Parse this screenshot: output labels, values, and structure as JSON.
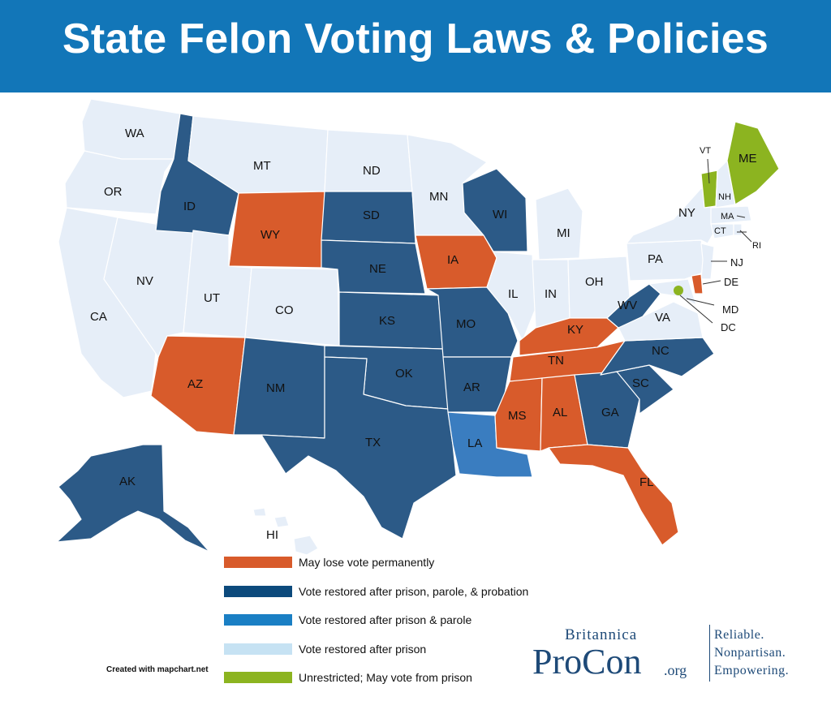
{
  "title": "State Felon Voting Laws & Policies",
  "colors": {
    "banner": "#1276b8",
    "permanent": "#d85b2b",
    "prison_parole_probation": "#2c5a87",
    "prison_parole": "#3a7dc0",
    "prison": "#e6eef8",
    "unrestricted": "#8cb420"
  },
  "legend": [
    {
      "category": "permanent",
      "label": "May lose vote permanently",
      "color": "#d85b2b"
    },
    {
      "category": "prison_parole_probation",
      "label": "Vote restored after prison, parole, & probation",
      "color": "#0c4a7c"
    },
    {
      "category": "prison_parole",
      "label": "Vote restored after prison & parole",
      "color": "#1a7fc4"
    },
    {
      "category": "prison",
      "label": "Vote restored after prison",
      "color": "#c6e2f3"
    },
    {
      "category": "unrestricted",
      "label": "Unrestricted; May vote from prison",
      "color": "#8cb420"
    }
  ],
  "states": {
    "WA": "prison",
    "OR": "prison",
    "CA": "prison",
    "NV": "prison",
    "ID": "prison_parole_probation",
    "MT": "prison",
    "WY": "permanent",
    "UT": "prison",
    "CO": "prison",
    "AZ": "permanent",
    "NM": "prison_parole_probation",
    "ND": "prison",
    "SD": "prison_parole_probation",
    "NE": "prison_parole_probation",
    "KS": "prison_parole_probation",
    "OK": "prison_parole_probation",
    "TX": "prison_parole_probation",
    "MN": "prison",
    "IA": "permanent",
    "MO": "prison_parole_probation",
    "AR": "prison_parole_probation",
    "LA": "prison_parole",
    "WI": "prison_parole_probation",
    "IL": "prison",
    "MI": "prison",
    "IN": "prison",
    "OH": "prison",
    "KY": "permanent",
    "TN": "permanent",
    "MS": "permanent",
    "AL": "permanent",
    "GA": "prison_parole_probation",
    "FL": "permanent",
    "SC": "prison_parole_probation",
    "NC": "prison_parole_probation",
    "VA": "prison",
    "WV": "prison_parole_probation",
    "PA": "prison",
    "NY": "prison",
    "VT": "unrestricted",
    "NH": "prison",
    "ME": "unrestricted",
    "MA": "prison",
    "CT": "prison",
    "RI": "prison",
    "NJ": "prison",
    "DE": "permanent",
    "MD": "prison",
    "DC": "unrestricted",
    "AK": "prison_parole_probation",
    "HI": "prison"
  },
  "callout_labels": [
    "VT",
    "NH",
    "MA",
    "CT",
    "RI",
    "NJ",
    "DE",
    "MD",
    "DC"
  ],
  "credit": "Created with mapchart.net",
  "brand": {
    "top": "Britannica",
    "main": "ProCon",
    "suffix": ".org",
    "tagline": [
      "Reliable.",
      "Nonpartisan.",
      "Empowering."
    ]
  }
}
